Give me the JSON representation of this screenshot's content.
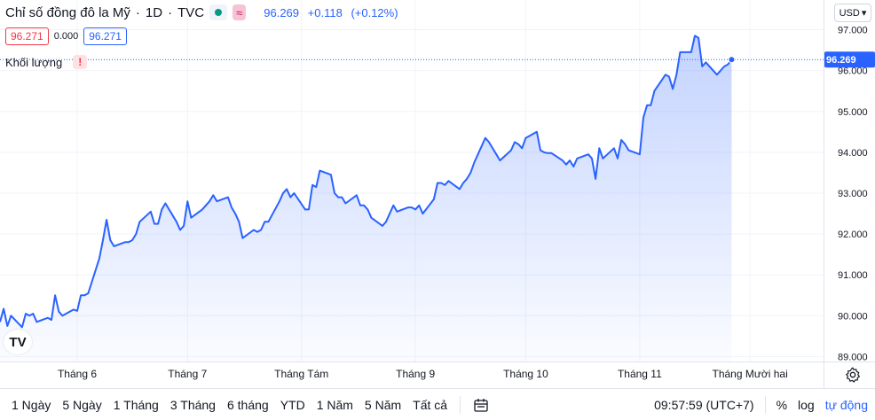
{
  "header": {
    "symbol_name": "Chỉ số đồng đô la Mỹ",
    "separator": "·",
    "interval": "1D",
    "exchange": "TVC",
    "wave_glyph": "≈",
    "last": "96.269",
    "change": "+0.118",
    "change_pct": "(+0.12%)"
  },
  "quote_boxes": {
    "bid": "96.271",
    "spread": "0.000",
    "ask": "96.271"
  },
  "volume_row": {
    "label": "Khối lượng",
    "warn_glyph": "!"
  },
  "currency": {
    "label": "USD",
    "chevron": "▾"
  },
  "logo_text": "TV",
  "colors": {
    "line": "#2962ff",
    "area_top": "rgba(41,98,255,0.28)",
    "area_bottom": "rgba(41,98,255,0.02)",
    "price_tag": "#2962ff",
    "grid": "#f0f3fa",
    "red": "#f23645",
    "green": "#089981"
  },
  "chart_data": {
    "type": "area",
    "y_axis": {
      "ticks": [
        89.0,
        90.0,
        91.0,
        92.0,
        93.0,
        94.0,
        95.0,
        96.0,
        97.0
      ],
      "tick_labels": [
        "89.000",
        "90.000",
        "91.000",
        "92.000",
        "93.000",
        "94.000",
        "95.000",
        "96.000",
        "97.000"
      ],
      "range": [
        88.88,
        97.25
      ],
      "current_value_label": "96.269",
      "current_value": 96.269
    },
    "x_axis": {
      "tick_labels": [
        "Tháng 6",
        "Tháng 7",
        "Tháng Tám",
        "Tháng 9",
        "Tháng 10",
        "Tháng 11",
        "Tháng Mười hai"
      ],
      "tick_dates": [
        "2021-06-01",
        "2021-07-01",
        "2021-08-01",
        "2021-09-01",
        "2021-10-01",
        "2021-11-01",
        "2021-12-01"
      ],
      "range": [
        "2021-05-11",
        "2021-12-21"
      ]
    },
    "grid": true,
    "series": [
      {
        "values": [
          {
            "x": "2021-05-11",
            "y": 89.85
          },
          {
            "x": "2021-05-12",
            "y": 90.17
          },
          {
            "x": "2021-05-13",
            "y": 89.75
          },
          {
            "x": "2021-05-14",
            "y": 90.0
          },
          {
            "x": "2021-05-17",
            "y": 89.72
          },
          {
            "x": "2021-05-18",
            "y": 90.05
          },
          {
            "x": "2021-05-19",
            "y": 90.0
          },
          {
            "x": "2021-05-20",
            "y": 90.05
          },
          {
            "x": "2021-05-21",
            "y": 89.85
          },
          {
            "x": "2021-05-24",
            "y": 89.95
          },
          {
            "x": "2021-05-25",
            "y": 89.9
          },
          {
            "x": "2021-05-26",
            "y": 90.5
          },
          {
            "x": "2021-05-27",
            "y": 90.1
          },
          {
            "x": "2021-05-28",
            "y": 90.0
          },
          {
            "x": "2021-05-31",
            "y": 90.15
          },
          {
            "x": "2021-06-01",
            "y": 90.12
          },
          {
            "x": "2021-06-02",
            "y": 90.5
          },
          {
            "x": "2021-06-03",
            "y": 90.5
          },
          {
            "x": "2021-06-04",
            "y": 90.55
          },
          {
            "x": "2021-06-07",
            "y": 91.4
          },
          {
            "x": "2021-06-08",
            "y": 91.85
          },
          {
            "x": "2021-06-09",
            "y": 92.35
          },
          {
            "x": "2021-06-10",
            "y": 91.85
          },
          {
            "x": "2021-06-11",
            "y": 91.7
          },
          {
            "x": "2021-06-14",
            "y": 91.8
          },
          {
            "x": "2021-06-15",
            "y": 91.8
          },
          {
            "x": "2021-06-16",
            "y": 91.85
          },
          {
            "x": "2021-06-17",
            "y": 92.0
          },
          {
            "x": "2021-06-18",
            "y": 92.3
          },
          {
            "x": "2021-06-21",
            "y": 92.55
          },
          {
            "x": "2021-06-22",
            "y": 92.25
          },
          {
            "x": "2021-06-23",
            "y": 92.25
          },
          {
            "x": "2021-06-24",
            "y": 92.6
          },
          {
            "x": "2021-06-25",
            "y": 92.75
          },
          {
            "x": "2021-06-28",
            "y": 92.3
          },
          {
            "x": "2021-06-29",
            "y": 92.1
          },
          {
            "x": "2021-06-30",
            "y": 92.2
          },
          {
            "x": "2021-07-01",
            "y": 92.8
          },
          {
            "x": "2021-07-02",
            "y": 92.4
          },
          {
            "x": "2021-07-05",
            "y": 92.6
          },
          {
            "x": "2021-07-06",
            "y": 92.7
          },
          {
            "x": "2021-07-07",
            "y": 92.8
          },
          {
            "x": "2021-07-08",
            "y": 92.95
          },
          {
            "x": "2021-07-09",
            "y": 92.8
          },
          {
            "x": "2021-07-12",
            "y": 92.9
          },
          {
            "x": "2021-07-13",
            "y": 92.65
          },
          {
            "x": "2021-07-14",
            "y": 92.5
          },
          {
            "x": "2021-07-15",
            "y": 92.3
          },
          {
            "x": "2021-07-16",
            "y": 91.9
          },
          {
            "x": "2021-07-19",
            "y": 92.1
          },
          {
            "x": "2021-07-20",
            "y": 92.05
          },
          {
            "x": "2021-07-21",
            "y": 92.1
          },
          {
            "x": "2021-07-22",
            "y": 92.3
          },
          {
            "x": "2021-07-23",
            "y": 92.3
          },
          {
            "x": "2021-07-26",
            "y": 92.8
          },
          {
            "x": "2021-07-27",
            "y": 93.0
          },
          {
            "x": "2021-07-28",
            "y": 93.1
          },
          {
            "x": "2021-07-29",
            "y": 92.9
          },
          {
            "x": "2021-07-30",
            "y": 93.0
          },
          {
            "x": "2021-08-02",
            "y": 92.6
          },
          {
            "x": "2021-08-03",
            "y": 92.6
          },
          {
            "x": "2021-08-04",
            "y": 93.2
          },
          {
            "x": "2021-08-05",
            "y": 93.15
          },
          {
            "x": "2021-08-06",
            "y": 93.55
          },
          {
            "x": "2021-08-09",
            "y": 93.45
          },
          {
            "x": "2021-08-10",
            "y": 93.0
          },
          {
            "x": "2021-08-11",
            "y": 92.9
          },
          {
            "x": "2021-08-12",
            "y": 92.9
          },
          {
            "x": "2021-08-13",
            "y": 92.75
          },
          {
            "x": "2021-08-16",
            "y": 92.95
          },
          {
            "x": "2021-08-17",
            "y": 92.7
          },
          {
            "x": "2021-08-18",
            "y": 92.7
          },
          {
            "x": "2021-08-19",
            "y": 92.6
          },
          {
            "x": "2021-08-20",
            "y": 92.4
          },
          {
            "x": "2021-08-23",
            "y": 92.2
          },
          {
            "x": "2021-08-24",
            "y": 92.3
          },
          {
            "x": "2021-08-25",
            "y": 92.5
          },
          {
            "x": "2021-08-26",
            "y": 92.7
          },
          {
            "x": "2021-08-27",
            "y": 92.55
          },
          {
            "x": "2021-08-30",
            "y": 92.65
          },
          {
            "x": "2021-08-31",
            "y": 92.65
          },
          {
            "x": "2021-09-01",
            "y": 92.6
          },
          {
            "x": "2021-09-02",
            "y": 92.7
          },
          {
            "x": "2021-09-03",
            "y": 92.5
          },
          {
            "x": "2021-09-06",
            "y": 92.85
          },
          {
            "x": "2021-09-07",
            "y": 93.25
          },
          {
            "x": "2021-09-08",
            "y": 93.25
          },
          {
            "x": "2021-09-09",
            "y": 93.2
          },
          {
            "x": "2021-09-10",
            "y": 93.3
          },
          {
            "x": "2021-09-13",
            "y": 93.1
          },
          {
            "x": "2021-09-14",
            "y": 93.25
          },
          {
            "x": "2021-09-15",
            "y": 93.35
          },
          {
            "x": "2021-09-16",
            "y": 93.5
          },
          {
            "x": "2021-09-17",
            "y": 93.75
          },
          {
            "x": "2021-09-20",
            "y": 94.35
          },
          {
            "x": "2021-09-21",
            "y": 94.25
          },
          {
            "x": "2021-09-22",
            "y": 94.1
          },
          {
            "x": "2021-09-23",
            "y": 93.95
          },
          {
            "x": "2021-09-24",
            "y": 93.8
          },
          {
            "x": "2021-09-27",
            "y": 94.05
          },
          {
            "x": "2021-09-28",
            "y": 94.25
          },
          {
            "x": "2021-09-29",
            "y": 94.2
          },
          {
            "x": "2021-09-30",
            "y": 94.1
          },
          {
            "x": "2021-10-01",
            "y": 94.35
          },
          {
            "x": "2021-10-04",
            "y": 94.5
          },
          {
            "x": "2021-10-05",
            "y": 94.05
          },
          {
            "x": "2021-10-06",
            "y": 94.0
          },
          {
            "x": "2021-10-07",
            "y": 93.98
          },
          {
            "x": "2021-10-08",
            "y": 93.98
          },
          {
            "x": "2021-10-11",
            "y": 93.8
          },
          {
            "x": "2021-10-12",
            "y": 93.7
          },
          {
            "x": "2021-10-13",
            "y": 93.8
          },
          {
            "x": "2021-10-14",
            "y": 93.65
          },
          {
            "x": "2021-10-15",
            "y": 93.85
          },
          {
            "x": "2021-10-18",
            "y": 93.95
          },
          {
            "x": "2021-10-19",
            "y": 93.85
          },
          {
            "x": "2021-10-20",
            "y": 93.35
          },
          {
            "x": "2021-10-21",
            "y": 94.1
          },
          {
            "x": "2021-10-22",
            "y": 93.85
          },
          {
            "x": "2021-10-25",
            "y": 94.1
          },
          {
            "x": "2021-10-26",
            "y": 93.85
          },
          {
            "x": "2021-10-27",
            "y": 94.3
          },
          {
            "x": "2021-10-28",
            "y": 94.2
          },
          {
            "x": "2021-10-29",
            "y": 94.05
          },
          {
            "x": "2021-11-01",
            "y": 93.95
          },
          {
            "x": "2021-11-02",
            "y": 94.85
          },
          {
            "x": "2021-11-03",
            "y": 95.15
          },
          {
            "x": "2021-11-04",
            "y": 95.15
          },
          {
            "x": "2021-11-05",
            "y": 95.5
          },
          {
            "x": "2021-11-08",
            "y": 95.9
          },
          {
            "x": "2021-11-09",
            "y": 95.85
          },
          {
            "x": "2021-11-10",
            "y": 95.55
          },
          {
            "x": "2021-11-11",
            "y": 95.9
          },
          {
            "x": "2021-11-12",
            "y": 96.45
          },
          {
            "x": "2021-11-15",
            "y": 96.45
          },
          {
            "x": "2021-11-16",
            "y": 96.85
          },
          {
            "x": "2021-11-17",
            "y": 96.8
          },
          {
            "x": "2021-11-18",
            "y": 96.1
          },
          {
            "x": "2021-11-19",
            "y": 96.2
          },
          {
            "x": "2021-11-22",
            "y": 95.9
          },
          {
            "x": "2021-11-23",
            "y": 96.0
          },
          {
            "x": "2021-11-24",
            "y": 96.1
          },
          {
            "x": "2021-11-25",
            "y": 96.15
          },
          {
            "x": "2021-11-26",
            "y": 96.269
          }
        ]
      }
    ]
  },
  "bottom_bar": {
    "ranges": [
      "1 Ngày",
      "5 Ngày",
      "1 Tháng",
      "3 Tháng",
      "6 tháng",
      "YTD",
      "1 Năm",
      "5 Năm",
      "Tất cả"
    ],
    "time": "09:57:59 (UTC+7)",
    "percent": "%",
    "log": "log",
    "autoscale": "tự động"
  }
}
